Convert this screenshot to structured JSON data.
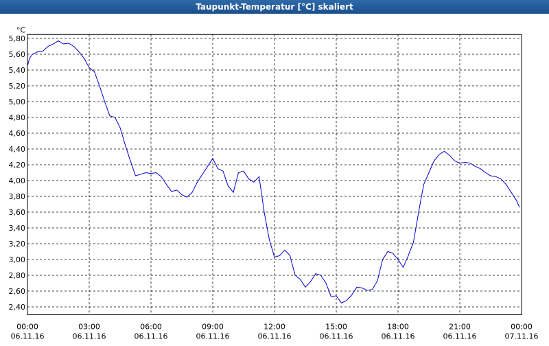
{
  "window": {
    "title": "Taupunkt-Temperatur [°C] skaliert"
  },
  "colors": {
    "title_bar": "#1f5592",
    "line": "#0000cc",
    "grid": "#000000",
    "background": "#ffffff"
  },
  "chart_data": {
    "type": "line",
    "title": "Taupunkt-Temperatur [°C] skaliert",
    "ylabel": "°C",
    "xlabel": "",
    "grid": true,
    "ylim": [
      2.3,
      5.85
    ],
    "xlim": [
      0,
      24
    ],
    "yticks": [
      2.4,
      2.6,
      2.8,
      3.0,
      3.2,
      3.4,
      3.6,
      3.8,
      4.0,
      4.2,
      4.4,
      4.6,
      4.8,
      5.0,
      5.2,
      5.4,
      5.6,
      5.8
    ],
    "ytick_labels": [
      "2,40",
      "2,60",
      "2,80",
      "3,00",
      "3,20",
      "3,40",
      "3,60",
      "3,80",
      "4,00",
      "4,20",
      "4,40",
      "4,60",
      "4,80",
      "5,00",
      "5,20",
      "5,40",
      "5,60",
      "5,80"
    ],
    "xticks": [
      {
        "x": 0,
        "time": "00:00",
        "date": "06.11.16"
      },
      {
        "x": 3,
        "time": "03:00",
        "date": "06.11.16"
      },
      {
        "x": 6,
        "time": "06:00",
        "date": "06.11.16"
      },
      {
        "x": 9,
        "time": "09:00",
        "date": "06.11.16"
      },
      {
        "x": 12,
        "time": "12:00",
        "date": "06.11.16"
      },
      {
        "x": 15,
        "time": "15:00",
        "date": "06.11.16"
      },
      {
        "x": 18,
        "time": "18:00",
        "date": "06.11.16"
      },
      {
        "x": 21,
        "time": "21:00",
        "date": "06.11.16"
      },
      {
        "x": 24,
        "time": "00:00",
        "date": "07.11.16"
      }
    ],
    "series": [
      {
        "x": [
          0.0,
          0.1,
          0.25,
          0.5,
          0.75,
          1.0,
          1.25,
          1.5,
          1.75,
          2.0,
          2.25,
          2.5,
          2.75,
          3.0,
          3.25,
          3.5,
          3.75,
          4.0,
          4.25,
          4.5,
          4.75,
          5.0,
          5.25,
          5.5,
          5.75,
          6.0,
          6.25,
          6.5,
          6.75,
          7.0,
          7.25,
          7.5,
          7.75,
          8.0,
          8.25,
          8.5,
          8.75,
          9.0,
          9.25,
          9.5,
          9.75,
          10.0,
          10.25,
          10.5,
          10.75,
          11.0,
          11.25,
          11.5,
          11.75,
          12.0,
          12.25,
          12.5,
          12.75,
          13.0,
          13.25,
          13.5,
          13.75,
          14.0,
          14.25,
          14.5,
          14.75,
          15.0,
          15.25,
          15.5,
          15.75,
          16.0,
          16.25,
          16.5,
          16.75,
          17.0,
          17.25,
          17.5,
          17.75,
          18.0,
          18.25,
          18.5,
          18.75,
          19.0,
          19.25,
          19.5,
          19.75,
          20.0,
          20.25,
          20.5,
          20.75,
          21.0,
          21.25,
          21.5,
          21.75,
          22.0,
          22.25,
          22.5,
          22.75,
          23.0,
          23.25,
          23.5,
          23.75,
          23.9
        ],
        "y": [
          5.45,
          5.55,
          5.6,
          5.63,
          5.64,
          5.7,
          5.73,
          5.77,
          5.73,
          5.74,
          5.7,
          5.63,
          5.55,
          5.43,
          5.38,
          5.2,
          5.0,
          4.82,
          4.8,
          4.67,
          4.45,
          4.25,
          4.06,
          4.08,
          4.1,
          4.09,
          4.1,
          4.05,
          3.95,
          3.86,
          3.88,
          3.82,
          3.79,
          3.85,
          3.98,
          4.08,
          4.18,
          4.28,
          4.15,
          4.12,
          3.93,
          3.85,
          4.1,
          4.12,
          4.02,
          3.98,
          4.05,
          3.6,
          3.25,
          3.03,
          3.05,
          3.12,
          3.05,
          2.8,
          2.75,
          2.65,
          2.72,
          2.82,
          2.8,
          2.7,
          2.53,
          2.54,
          2.45,
          2.48,
          2.55,
          2.65,
          2.64,
          2.61,
          2.62,
          2.73,
          3.0,
          3.1,
          3.08,
          3.0,
          2.9,
          3.05,
          3.22,
          3.6,
          3.95,
          4.1,
          4.25,
          4.33,
          4.37,
          4.32,
          4.25,
          4.22,
          4.23,
          4.22,
          4.18,
          4.15,
          4.1,
          4.06,
          4.05,
          4.02,
          3.95,
          3.85,
          3.75,
          3.66
        ]
      }
    ]
  }
}
